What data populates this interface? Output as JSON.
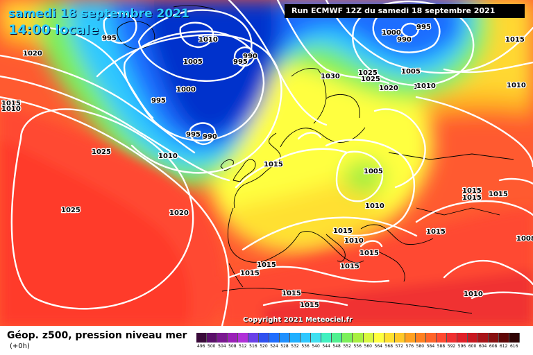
{
  "header": {
    "date_title": "samedi 18 septembre 2021",
    "time_title": "14:00 locale",
    "run_info": "Run ECMWF 12Z du samedi 18 septembre 2021"
  },
  "copyright": "Copyright 2021 Meteociel.fr",
  "footer": {
    "title": "Géop. z500, pression niveau mer",
    "subtitle": "(+0h)"
  },
  "colors": {
    "deep_blue": "#0033cc",
    "blue": "#1f6dff",
    "cyan": "#2fc8ff",
    "green": "#7cf05a",
    "yellow": "#ffff40",
    "orange": "#ffa020",
    "red": "#ff4a30",
    "title_cyan": "#2fd0ff"
  },
  "colorscale": {
    "labels": [
      "496",
      "500",
      "504",
      "508",
      "512",
      "516",
      "520",
      "524",
      "528",
      "532",
      "536",
      "540",
      "544",
      "548",
      "552",
      "556",
      "560",
      "564",
      "568",
      "572",
      "576",
      "580",
      "584",
      "588",
      "592",
      "596",
      "600",
      "604",
      "608",
      "612",
      "616"
    ],
    "colors": [
      "#3a0a3a",
      "#5a0f6a",
      "#7a1890",
      "#9a20b8",
      "#b030d8",
      "#6a40e8",
      "#3050f0",
      "#1f6dff",
      "#2090ff",
      "#20b0ff",
      "#2fc8ff",
      "#40e0f0",
      "#40f0c0",
      "#50f090",
      "#7cf05a",
      "#a8f040",
      "#d8f840",
      "#ffff40",
      "#ffe030",
      "#ffc828",
      "#ffa020",
      "#ff8020",
      "#ff6428",
      "#ff4a30",
      "#f03030",
      "#e02028",
      "#c81820",
      "#a81418",
      "#881010",
      "#600808",
      "#300404"
    ]
  },
  "pressure_labels": [
    {
      "text": "995"
    },
    {
      "text": "1020"
    },
    {
      "text": "1015"
    },
    {
      "text": "1010"
    },
    {
      "text": "1005"
    },
    {
      "text": "1000"
    },
    {
      "text": "995"
    },
    {
      "text": "990"
    },
    {
      "text": "995"
    },
    {
      "text": "990"
    },
    {
      "text": "995"
    },
    {
      "text": "1025"
    },
    {
      "text": "1010"
    },
    {
      "text": "1025"
    },
    {
      "text": "1020"
    },
    {
      "text": "1030"
    },
    {
      "text": "1025"
    },
    {
      "text": "1025"
    },
    {
      "text": "1020"
    },
    {
      "text": "1010"
    },
    {
      "text": "1005"
    },
    {
      "text": "995"
    },
    {
      "text": "990"
    },
    {
      "text": "1000"
    },
    {
      "text": "1015"
    },
    {
      "text": "1010"
    },
    {
      "text": "1015"
    },
    {
      "text": "1005"
    },
    {
      "text": "1010"
    },
    {
      "text": "1015"
    },
    {
      "text": "1010"
    },
    {
      "text": "1010"
    },
    {
      "text": "1015"
    },
    {
      "text": "1015"
    },
    {
      "text": "1015"
    },
    {
      "text": "1015"
    },
    {
      "text": "1015"
    },
    {
      "text": "1015"
    },
    {
      "text": "1015"
    },
    {
      "text": "1015"
    },
    {
      "text": "1010"
    },
    {
      "text": "1015"
    },
    {
      "text": "1015"
    },
    {
      "text": "1010"
    },
    {
      "text": "1008"
    }
  ]
}
